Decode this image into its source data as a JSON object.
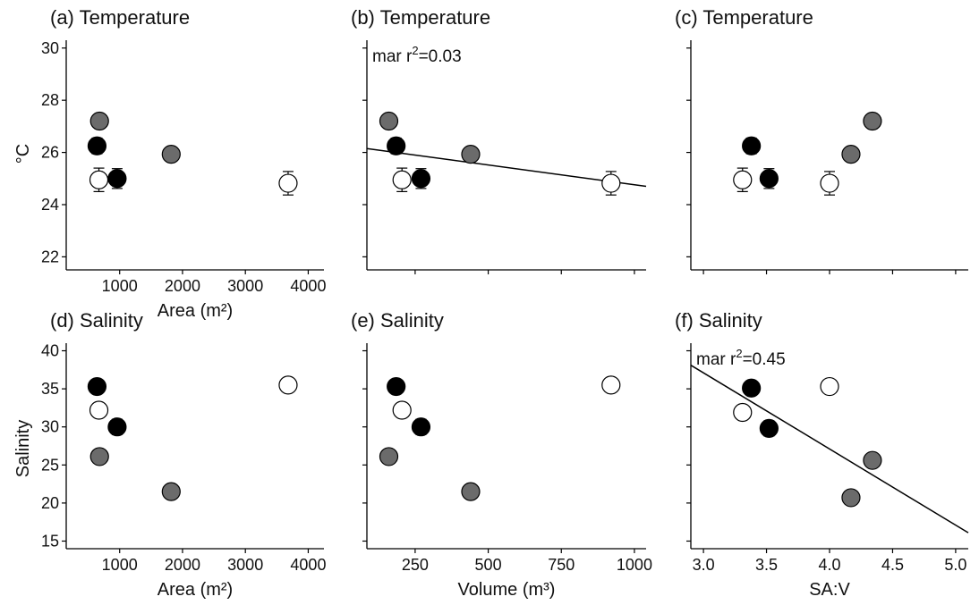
{
  "figure": {
    "shared_ylabels": {
      "temperature": "°C",
      "salinity": "Salinity"
    }
  },
  "chart_data": [
    {
      "type": "scatter",
      "title": "(a) Temperature",
      "xlabel": "Area (m²)",
      "ylabel": "°C",
      "xlim": [
        150,
        4250
      ],
      "ylim": [
        21.5,
        30.3
      ],
      "xticks": [
        1000,
        2000,
        3000,
        4000
      ],
      "yticks": [
        22,
        24,
        26,
        28,
        30
      ],
      "show_xtick_labels": true,
      "show_ytick_labels": true,
      "points": [
        {
          "x": 680,
          "y": 27.2,
          "err": 0.28,
          "color": "#6b6b6b"
        },
        {
          "x": 640,
          "y": 26.25,
          "err": 0.3,
          "color": "#000000"
        },
        {
          "x": 1820,
          "y": 25.93,
          "err": 0.22,
          "color": "#6b6b6b"
        },
        {
          "x": 960,
          "y": 25.0,
          "err": 0.38,
          "color": "#000000"
        },
        {
          "x": 670,
          "y": 24.95,
          "err": 0.45,
          "color": "#ffffff"
        },
        {
          "x": 3680,
          "y": 24.82,
          "err": 0.45,
          "color": "#ffffff"
        }
      ]
    },
    {
      "type": "scatter",
      "title": "(b) Temperature",
      "annotation": {
        "prefix": "mar r",
        "sup": "2",
        "suffix": "=0.03"
      },
      "xlabel": "",
      "ylabel": "",
      "xlim": [
        85,
        1040
      ],
      "ylim": [
        21.5,
        30.3
      ],
      "xticks": [
        250,
        500,
        750,
        1000
      ],
      "yticks": [
        22,
        24,
        26,
        28,
        30
      ],
      "show_xtick_labels": false,
      "show_ytick_labels": false,
      "fit_line": {
        "x1": 85,
        "y1": 26.15,
        "x2": 1040,
        "y2": 24.7
      },
      "points": [
        {
          "x": 160,
          "y": 27.2,
          "err": 0.28,
          "color": "#6b6b6b"
        },
        {
          "x": 185,
          "y": 26.25,
          "err": 0.3,
          "color": "#000000"
        },
        {
          "x": 440,
          "y": 25.93,
          "err": 0.22,
          "color": "#6b6b6b"
        },
        {
          "x": 270,
          "y": 25.0,
          "err": 0.38,
          "color": "#000000"
        },
        {
          "x": 205,
          "y": 24.95,
          "err": 0.45,
          "color": "#ffffff"
        },
        {
          "x": 920,
          "y": 24.82,
          "err": 0.45,
          "color": "#ffffff"
        }
      ]
    },
    {
      "type": "scatter",
      "title": "(c) Temperature",
      "xlabel": "",
      "ylabel": "",
      "xlim": [
        2.9,
        5.1
      ],
      "ylim": [
        21.5,
        30.3
      ],
      "xticks": [
        3.0,
        3.5,
        4.0,
        4.5,
        5.0
      ],
      "yticks": [
        22,
        24,
        26,
        28,
        30
      ],
      "show_xtick_labels": false,
      "show_ytick_labels": false,
      "points": [
        {
          "x": 4.34,
          "y": 27.2,
          "err": 0.28,
          "color": "#6b6b6b"
        },
        {
          "x": 3.38,
          "y": 26.25,
          "err": 0.3,
          "color": "#000000"
        },
        {
          "x": 4.17,
          "y": 25.93,
          "err": 0.22,
          "color": "#6b6b6b"
        },
        {
          "x": 3.52,
          "y": 25.0,
          "err": 0.38,
          "color": "#000000"
        },
        {
          "x": 3.31,
          "y": 24.95,
          "err": 0.45,
          "color": "#ffffff"
        },
        {
          "x": 4.0,
          "y": 24.82,
          "err": 0.45,
          "color": "#ffffff"
        }
      ]
    },
    {
      "type": "scatter",
      "title": "(d) Salinity",
      "xlabel": "Area (m²)",
      "ylabel": "Salinity",
      "xlim": [
        150,
        4250
      ],
      "ylim": [
        14,
        41
      ],
      "xticks": [
        1000,
        2000,
        3000,
        4000
      ],
      "yticks": [
        15,
        20,
        25,
        30,
        35,
        40
      ],
      "show_xtick_labels": true,
      "show_ytick_labels": true,
      "points": [
        {
          "x": 640,
          "y": 35.3,
          "err": 0.6,
          "color": "#000000"
        },
        {
          "x": 670,
          "y": 32.2,
          "err": 0.0,
          "color": "#ffffff"
        },
        {
          "x": 960,
          "y": 30.0,
          "err": 1.0,
          "color": "#000000"
        },
        {
          "x": 680,
          "y": 26.1,
          "err": 0.0,
          "color": "#6b6b6b"
        },
        {
          "x": 1820,
          "y": 21.5,
          "err": 0.0,
          "color": "#6b6b6b"
        },
        {
          "x": 3680,
          "y": 35.5,
          "err": 0.0,
          "color": "#ffffff"
        }
      ]
    },
    {
      "type": "scatter",
      "title": "(e) Salinity",
      "xlabel": "Volume (m³)",
      "ylabel": "",
      "xlim": [
        85,
        1040
      ],
      "ylim": [
        14,
        41
      ],
      "xticks": [
        250,
        500,
        750,
        1000
      ],
      "yticks": [
        15,
        20,
        25,
        30,
        35,
        40
      ],
      "show_xtick_labels": true,
      "show_ytick_labels": false,
      "points": [
        {
          "x": 185,
          "y": 35.3,
          "err": 0.6,
          "color": "#000000"
        },
        {
          "x": 205,
          "y": 32.2,
          "err": 0.0,
          "color": "#ffffff"
        },
        {
          "x": 270,
          "y": 30.0,
          "err": 1.0,
          "color": "#000000"
        },
        {
          "x": 160,
          "y": 26.1,
          "err": 0.0,
          "color": "#6b6b6b"
        },
        {
          "x": 440,
          "y": 21.5,
          "err": 0.0,
          "color": "#6b6b6b"
        },
        {
          "x": 920,
          "y": 35.5,
          "err": 0.0,
          "color": "#ffffff"
        }
      ]
    },
    {
      "type": "scatter",
      "title": "(f) Salinity",
      "annotation": {
        "prefix": "mar r",
        "sup": "2",
        "suffix": "=0.45"
      },
      "xlabel": "SA:V",
      "ylabel": "",
      "xlim": [
        2.9,
        5.1
      ],
      "ylim": [
        14,
        41
      ],
      "xticks": [
        3.0,
        3.5,
        4.0,
        4.5,
        5.0
      ],
      "yticks": [
        15,
        20,
        25,
        30,
        35,
        40
      ],
      "show_xtick_labels": true,
      "show_ytick_labels": false,
      "fit_line": {
        "x1": 2.9,
        "y1": 38.1,
        "x2": 5.1,
        "y2": 16.1
      },
      "points": [
        {
          "x": 3.38,
          "y": 35.1,
          "err": 0.6,
          "color": "#000000"
        },
        {
          "x": 3.31,
          "y": 31.9,
          "err": 0.0,
          "color": "#ffffff"
        },
        {
          "x": 3.52,
          "y": 29.8,
          "err": 1.0,
          "color": "#000000"
        },
        {
          "x": 4.0,
          "y": 35.3,
          "err": 0.0,
          "color": "#ffffff"
        },
        {
          "x": 4.34,
          "y": 25.6,
          "err": 0.0,
          "color": "#6b6b6b"
        },
        {
          "x": 4.17,
          "y": 20.7,
          "err": 0.0,
          "color": "#6b6b6b"
        }
      ]
    }
  ]
}
